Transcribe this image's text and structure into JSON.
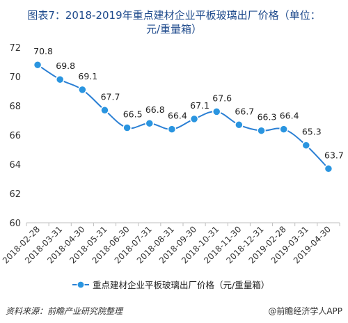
{
  "title": {
    "line1": "图表7：2018-2019年重点建材企业平板玻璃出厂价格（单位：",
    "line2": "元/重量箱）"
  },
  "source": "资料来源：前瞻产业研究院整理",
  "credit": "@前瞻经济学人APP",
  "colors": {
    "line": "#2a7fd4",
    "marker": "#2a95e0",
    "title": "#1e4a8c",
    "grid": "#d9d9d9"
  },
  "chart_data": {
    "type": "line",
    "title": "图表7：2018-2019年重点建材企业平板玻璃出厂价格（单位：元/重量箱）",
    "xlabel": "",
    "ylabel": "",
    "ylim": [
      60,
      72
    ],
    "yticks": [
      60,
      62,
      64,
      66,
      68,
      70,
      72
    ],
    "grid": false,
    "legend_position": "bottom",
    "categories": [
      "2018-02-28",
      "2018-03-31",
      "2018-04-30",
      "2018-05-31",
      "2018-06-30",
      "2018-07-31",
      "2018-08-31",
      "2018-09-30",
      "2018-10-31",
      "2018-11-30",
      "2018-12-31",
      "2019-02-28",
      "2019-03-31",
      "2019-04-30"
    ],
    "series": [
      {
        "name": "重点建材企业平板玻璃出厂价格（元/重量箱）",
        "values": [
          70.8,
          69.8,
          69.1,
          67.7,
          66.5,
          66.8,
          66.4,
          67.1,
          67.6,
          66.7,
          66.3,
          66.4,
          65.3,
          63.7
        ]
      }
    ]
  }
}
